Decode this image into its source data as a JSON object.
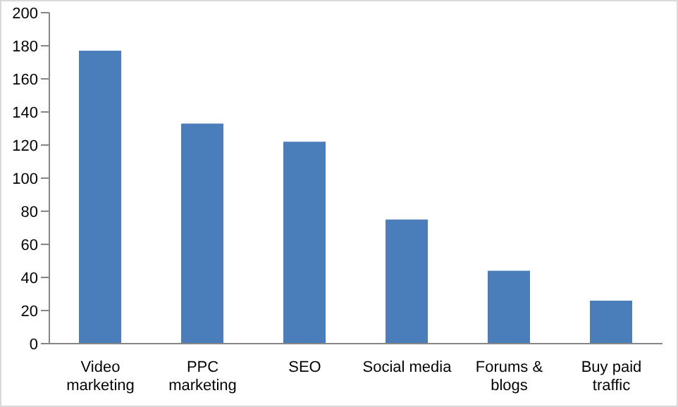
{
  "chart_data": {
    "type": "bar",
    "categories": [
      "Video marketing",
      "PPC marketing",
      "SEO",
      "Social media",
      "Forums & blogs",
      "Buy paid traffic"
    ],
    "values": [
      177,
      133,
      122,
      75,
      44,
      26
    ],
    "color": "#4a7ebb",
    "ylim": [
      0,
      200
    ],
    "yticks": [
      0,
      20,
      40,
      60,
      80,
      100,
      120,
      140,
      160,
      180,
      200
    ],
    "grid": false,
    "legend": false
  }
}
